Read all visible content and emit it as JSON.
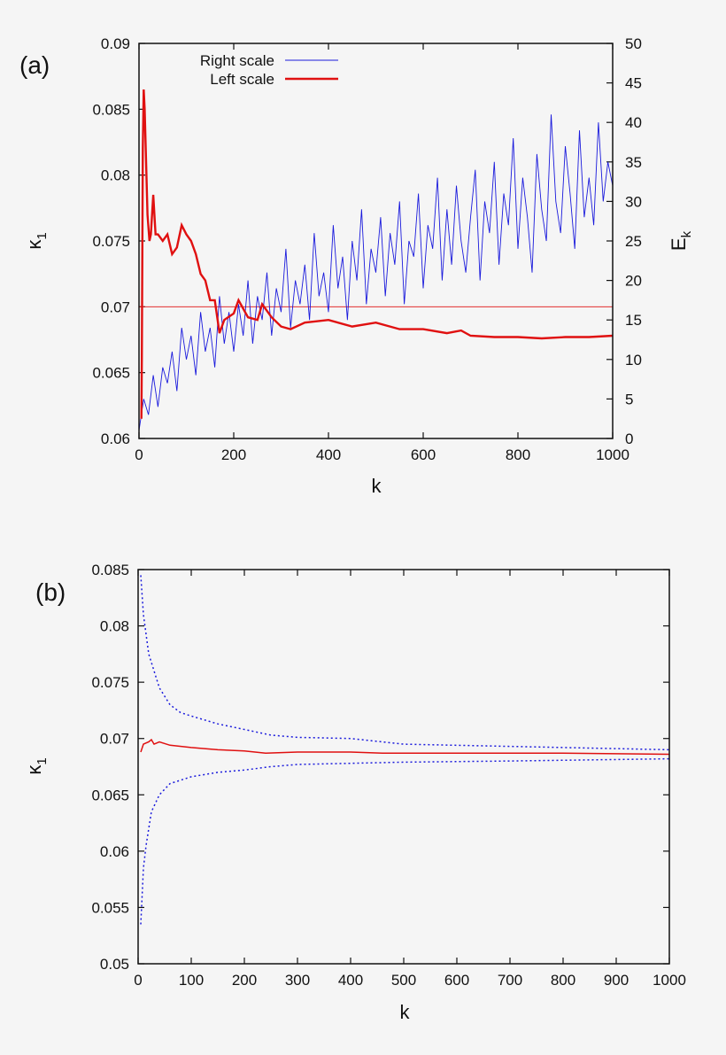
{
  "chart_data": [
    {
      "type": "line",
      "panel_label": "(a)",
      "xlabel": "k",
      "ylabel": "κ",
      "ylabel_sub": "1",
      "y2label": "E",
      "y2label_sub": "k",
      "xlim": [
        0,
        1000
      ],
      "ylim": [
        0.06,
        0.09
      ],
      "y2lim": [
        0,
        50
      ],
      "xticks": [
        "0",
        "200",
        "400",
        "600",
        "800",
        "1000"
      ],
      "yticks": [
        "0.06",
        "0.065",
        "0.07",
        "0.075",
        "0.08",
        "0.085",
        "0.09"
      ],
      "y2ticks": [
        "0",
        "5",
        "10",
        "15",
        "20",
        "25",
        "30",
        "35",
        "40",
        "45",
        "50"
      ],
      "legend_position": "top-left",
      "reference_line_y": 0.07,
      "colors": {
        "right": "#1a1adc",
        "left": "#e01010"
      },
      "series": [
        {
          "name": "Right scale",
          "axis": "right",
          "color": "#1a1adc",
          "x_step": 10,
          "values": [
            1,
            5,
            3,
            8,
            4,
            9,
            7,
            11,
            6,
            14,
            10,
            13,
            8,
            16,
            11,
            14,
            9,
            18,
            12,
            16,
            11,
            17,
            13,
            20,
            12,
            18,
            15,
            21,
            13,
            19,
            16,
            24,
            14,
            20,
            17,
            22,
            15,
            26,
            18,
            21,
            16,
            27,
            19,
            23,
            15,
            25,
            20,
            29,
            17,
            24,
            21,
            28,
            18,
            26,
            22,
            30,
            17,
            25,
            23,
            31,
            19,
            27,
            24,
            33,
            20,
            29,
            22,
            32,
            25,
            21,
            28,
            34,
            20,
            30,
            26,
            35,
            22,
            31,
            27,
            38,
            24,
            33,
            28,
            21,
            36,
            29,
            25,
            41,
            30,
            26,
            37,
            31,
            24,
            39,
            28,
            33,
            27,
            40,
            30,
            35,
            32
          ]
        },
        {
          "name": "Left scale",
          "axis": "left",
          "color": "#e01010",
          "points": [
            [
              5,
              0.0615
            ],
            [
              6,
              0.066
            ],
            [
              8,
              0.082
            ],
            [
              10,
              0.0865
            ],
            [
              12,
              0.085
            ],
            [
              15,
              0.081
            ],
            [
              18,
              0.077
            ],
            [
              22,
              0.075
            ],
            [
              25,
              0.0755
            ],
            [
              30,
              0.0785
            ],
            [
              35,
              0.0755
            ],
            [
              40,
              0.0755
            ],
            [
              50,
              0.075
            ],
            [
              60,
              0.0755
            ],
            [
              70,
              0.074
            ],
            [
              80,
              0.0745
            ],
            [
              90,
              0.0762
            ],
            [
              100,
              0.0755
            ],
            [
              110,
              0.075
            ],
            [
              120,
              0.074
            ],
            [
              130,
              0.0725
            ],
            [
              140,
              0.072
            ],
            [
              150,
              0.0705
            ],
            [
              160,
              0.0705
            ],
            [
              170,
              0.068
            ],
            [
              180,
              0.069
            ],
            [
              200,
              0.0695
            ],
            [
              210,
              0.0705
            ],
            [
              230,
              0.0692
            ],
            [
              250,
              0.069
            ],
            [
              260,
              0.0702
            ],
            [
              280,
              0.0692
            ],
            [
              300,
              0.0685
            ],
            [
              320,
              0.0683
            ],
            [
              350,
              0.0688
            ],
            [
              400,
              0.069
            ],
            [
              450,
              0.0685
            ],
            [
              500,
              0.0688
            ],
            [
              550,
              0.0683
            ],
            [
              600,
              0.0683
            ],
            [
              650,
              0.068
            ],
            [
              680,
              0.0682
            ],
            [
              700,
              0.0678
            ],
            [
              750,
              0.0677
            ],
            [
              800,
              0.0677
            ],
            [
              850,
              0.0676
            ],
            [
              900,
              0.0677
            ],
            [
              950,
              0.0677
            ],
            [
              1000,
              0.0678
            ]
          ]
        }
      ]
    },
    {
      "type": "line",
      "panel_label": "(b)",
      "xlabel": "k",
      "ylabel": "κ",
      "ylabel_sub": "1",
      "xlim": [
        0,
        1000
      ],
      "ylim": [
        0.05,
        0.085
      ],
      "xticks": [
        "0",
        "100",
        "200",
        "300",
        "400",
        "500",
        "600",
        "700",
        "800",
        "900",
        "1000"
      ],
      "yticks": [
        "0.05",
        "0.055",
        "0.06",
        "0.065",
        "0.07",
        "0.075",
        "0.08",
        "0.085"
      ],
      "series": [
        {
          "style": "solid",
          "color": "#e01010",
          "points": [
            [
              5,
              0.0688
            ],
            [
              10,
              0.0695
            ],
            [
              20,
              0.0697
            ],
            [
              25,
              0.0699
            ],
            [
              30,
              0.0695
            ],
            [
              40,
              0.0697
            ],
            [
              60,
              0.0694
            ],
            [
              100,
              0.0692
            ],
            [
              150,
              0.069
            ],
            [
              200,
              0.0689
            ],
            [
              240,
              0.0687
            ],
            [
              300,
              0.0688
            ],
            [
              400,
              0.0688
            ],
            [
              460,
              0.0687
            ],
            [
              600,
              0.0687
            ],
            [
              800,
              0.0687
            ],
            [
              1000,
              0.0686
            ]
          ]
        },
        {
          "style": "dotted",
          "color": "#1a1adc",
          "points": [
            [
              5,
              0.0845
            ],
            [
              10,
              0.081
            ],
            [
              20,
              0.0775
            ],
            [
              30,
              0.076
            ],
            [
              40,
              0.0745
            ],
            [
              60,
              0.073
            ],
            [
              80,
              0.0723
            ],
            [
              100,
              0.072
            ],
            [
              150,
              0.0713
            ],
            [
              200,
              0.0708
            ],
            [
              250,
              0.0703
            ],
            [
              300,
              0.0701
            ],
            [
              400,
              0.07
            ],
            [
              500,
              0.0695
            ],
            [
              700,
              0.0693
            ],
            [
              1000,
              0.069
            ]
          ]
        },
        {
          "style": "dotted",
          "color": "#1a1adc",
          "points": [
            [
              5,
              0.0535
            ],
            [
              10,
              0.0585
            ],
            [
              15,
              0.0605
            ],
            [
              25,
              0.0635
            ],
            [
              40,
              0.065
            ],
            [
              60,
              0.066
            ],
            [
              100,
              0.0666
            ],
            [
              150,
              0.067
            ],
            [
              200,
              0.0672
            ],
            [
              250,
              0.0675
            ],
            [
              300,
              0.0677
            ],
            [
              400,
              0.0678
            ],
            [
              500,
              0.0679
            ],
            [
              700,
              0.068
            ],
            [
              1000,
              0.0682
            ]
          ]
        }
      ]
    }
  ]
}
